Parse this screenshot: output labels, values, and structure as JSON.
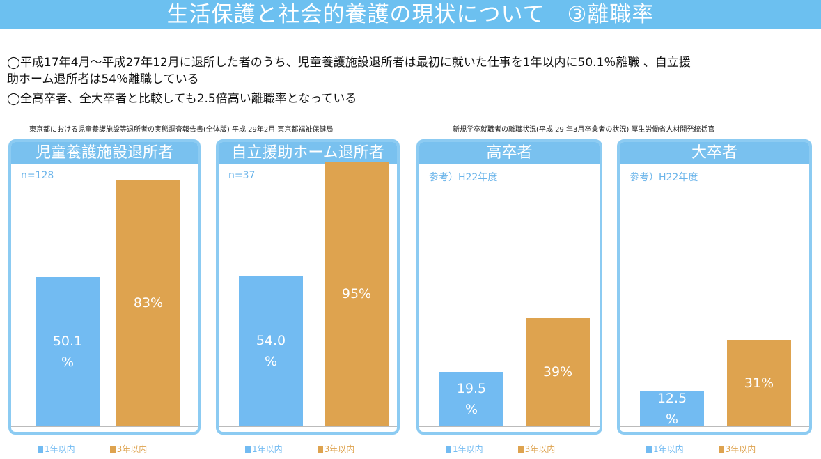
{
  "title": "生活保護と社会的養護の現状について　③離職率",
  "intro": [
    "◯平成17年4月～平成27年12月に退所した者のうち、児童養護施設退所者は最初に就いた仕事を1年以内に50.1％離職 、自立援",
    "助ホーム退所者は54％離職している",
    "◯全高卒者、全大卒者と比較しても2.5倍高い離職率となっている"
  ],
  "sources": [
    "東京都における児童養護施設等退所者の実態調査報告書(全体版) 平成 29年2月 東京都福祉保健局",
    "新規学卒就職者の離職状況(平成 29 年3月卒業者の状況) 厚生労働省人材開発統括官"
  ],
  "colors": {
    "blue": "#72bbf2",
    "orange": "#dea34f"
  },
  "chart_data": [
    {
      "type": "bar",
      "title": "児童養護施設退所者",
      "note": "n=128",
      "categories": [
        "1年以内",
        "3年以内"
      ],
      "values": [
        50.1,
        83
      ],
      "labels": [
        "50.1\n%",
        "83%"
      ],
      "ylim": [
        0,
        89
      ]
    },
    {
      "type": "bar",
      "title": "自立援助ホーム退所者",
      "note": "n=37",
      "categories": [
        "1年以内",
        "3年以内"
      ],
      "values": [
        54.0,
        95
      ],
      "labels": [
        "54.0\n%",
        "95%"
      ],
      "ylim": [
        0,
        95
      ]
    },
    {
      "type": "bar",
      "title": "高卒者",
      "note": "参考）H22年度",
      "categories": [
        "1年以内",
        "3年以内"
      ],
      "values": [
        19.5,
        39
      ],
      "labels": [
        "19.5\n%",
        "39%"
      ],
      "ylim": [
        0,
        95
      ]
    },
    {
      "type": "bar",
      "title": "大卒者",
      "note": "参考）H22年度",
      "categories": [
        "1年以内",
        "3年以内"
      ],
      "values": [
        12.5,
        31
      ],
      "labels": [
        "12.5\n%",
        "31%"
      ],
      "ylim": [
        0,
        95
      ]
    }
  ]
}
